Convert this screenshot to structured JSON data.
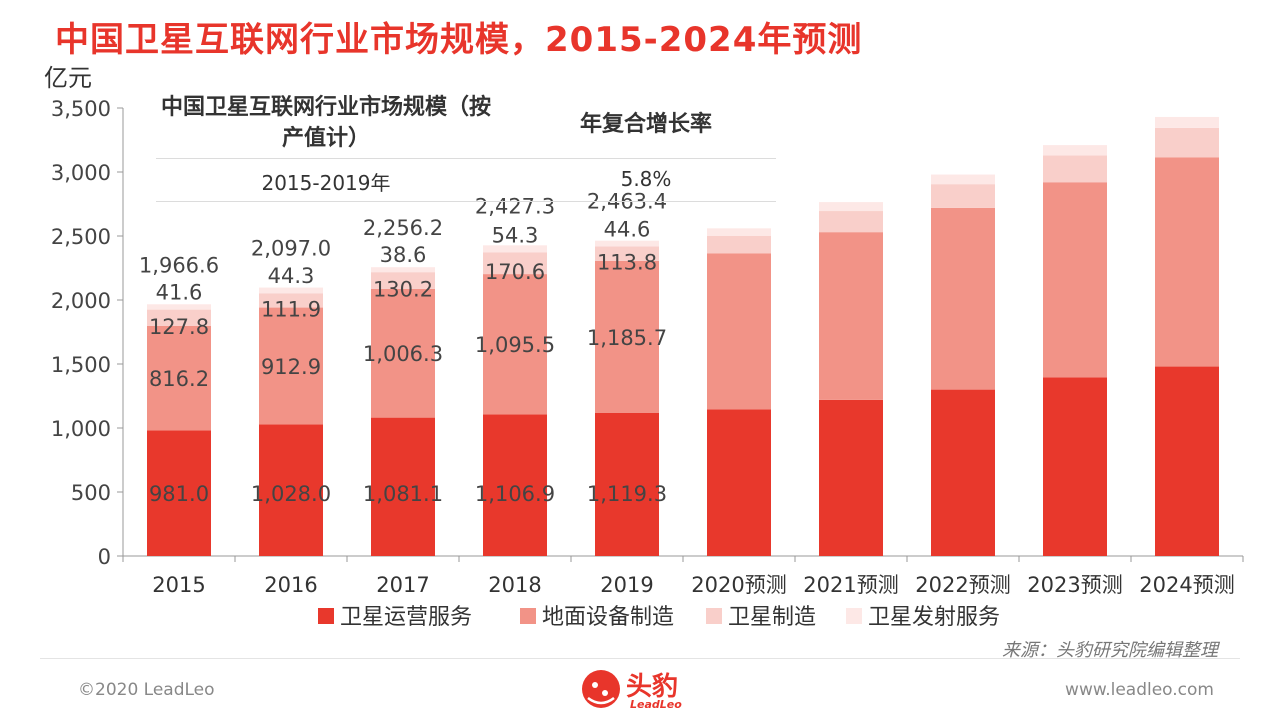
{
  "title": "中国卫星互联网行业市场规模，2015-2024年预测",
  "unit": "亿元",
  "cagr_table": {
    "header_scale": "中国卫星互联网行业市场规模（按产值计）",
    "header_cagr": "年复合增长率",
    "rows": [
      {
        "period": "2015-2019年",
        "rate": "5.8%"
      }
    ]
  },
  "source": "来源：头豹研究院编辑整理",
  "footer": {
    "copyright": "©2020 LeadLeo",
    "website": "www.leadleo.com",
    "logo_text": "头豹",
    "logo_sub": "LeadLeo"
  },
  "colors": {
    "title": "#e8352b",
    "卫星运营服务": "#e8382c",
    "地面设备制造": "#f29387",
    "卫星制造": "#f9cfca",
    "卫星发射服务": "#fde8e6"
  },
  "chart_data": {
    "type": "bar",
    "stacked": true,
    "categories": [
      "2015",
      "2016",
      "2017",
      "2018",
      "2019",
      "2020预测",
      "2021预测",
      "2022预测",
      "2023预测",
      "2024预测"
    ],
    "series": [
      {
        "name": "卫星运营服务",
        "values": [
          981.0,
          1028.0,
          1081.1,
          1106.9,
          1119.3,
          1145,
          1220,
          1300,
          1395,
          1480
        ]
      },
      {
        "name": "地面设备制造",
        "values": [
          816.2,
          912.9,
          1006.3,
          1095.5,
          1185.7,
          1220,
          1310,
          1420,
          1525,
          1635
        ]
      },
      {
        "name": "卫星制造",
        "values": [
          127.8,
          111.9,
          130.2,
          170.6,
          113.8,
          135,
          165,
          185,
          210,
          230
        ]
      },
      {
        "name": "卫星发射服务",
        "values": [
          41.6,
          44.3,
          38.6,
          54.3,
          44.6,
          60,
          70,
          75,
          80,
          85
        ]
      }
    ],
    "series_labels": [
      [
        "981.0",
        "1,028.0",
        "1,081.1",
        "1,106.9",
        "1,119.3",
        "",
        "",
        "",
        "",
        ""
      ],
      [
        "816.2",
        "912.9",
        "1,006.3",
        "1,095.5",
        "1,185.7",
        "",
        "",
        "",
        "",
        ""
      ],
      [
        "127.8",
        "111.9",
        "130.2",
        "170.6",
        "113.8",
        "",
        "",
        "",
        "",
        ""
      ],
      [
        "41.6",
        "44.3",
        "38.6",
        "54.3",
        "44.6",
        "",
        "",
        "",
        "",
        ""
      ]
    ],
    "totals": [
      "1,966.6",
      "2,097.0",
      "2,256.2",
      "2,427.3",
      "2,463.4",
      "",
      "",
      "",
      "",
      ""
    ],
    "y_ticks": [
      "0",
      "500",
      "1,000",
      "1,500",
      "2,000",
      "2,500",
      "3,000",
      "3,500"
    ],
    "ylim": [
      0,
      3500
    ],
    "ylabel": "亿元",
    "legend_position": "bottom",
    "grid": false
  }
}
